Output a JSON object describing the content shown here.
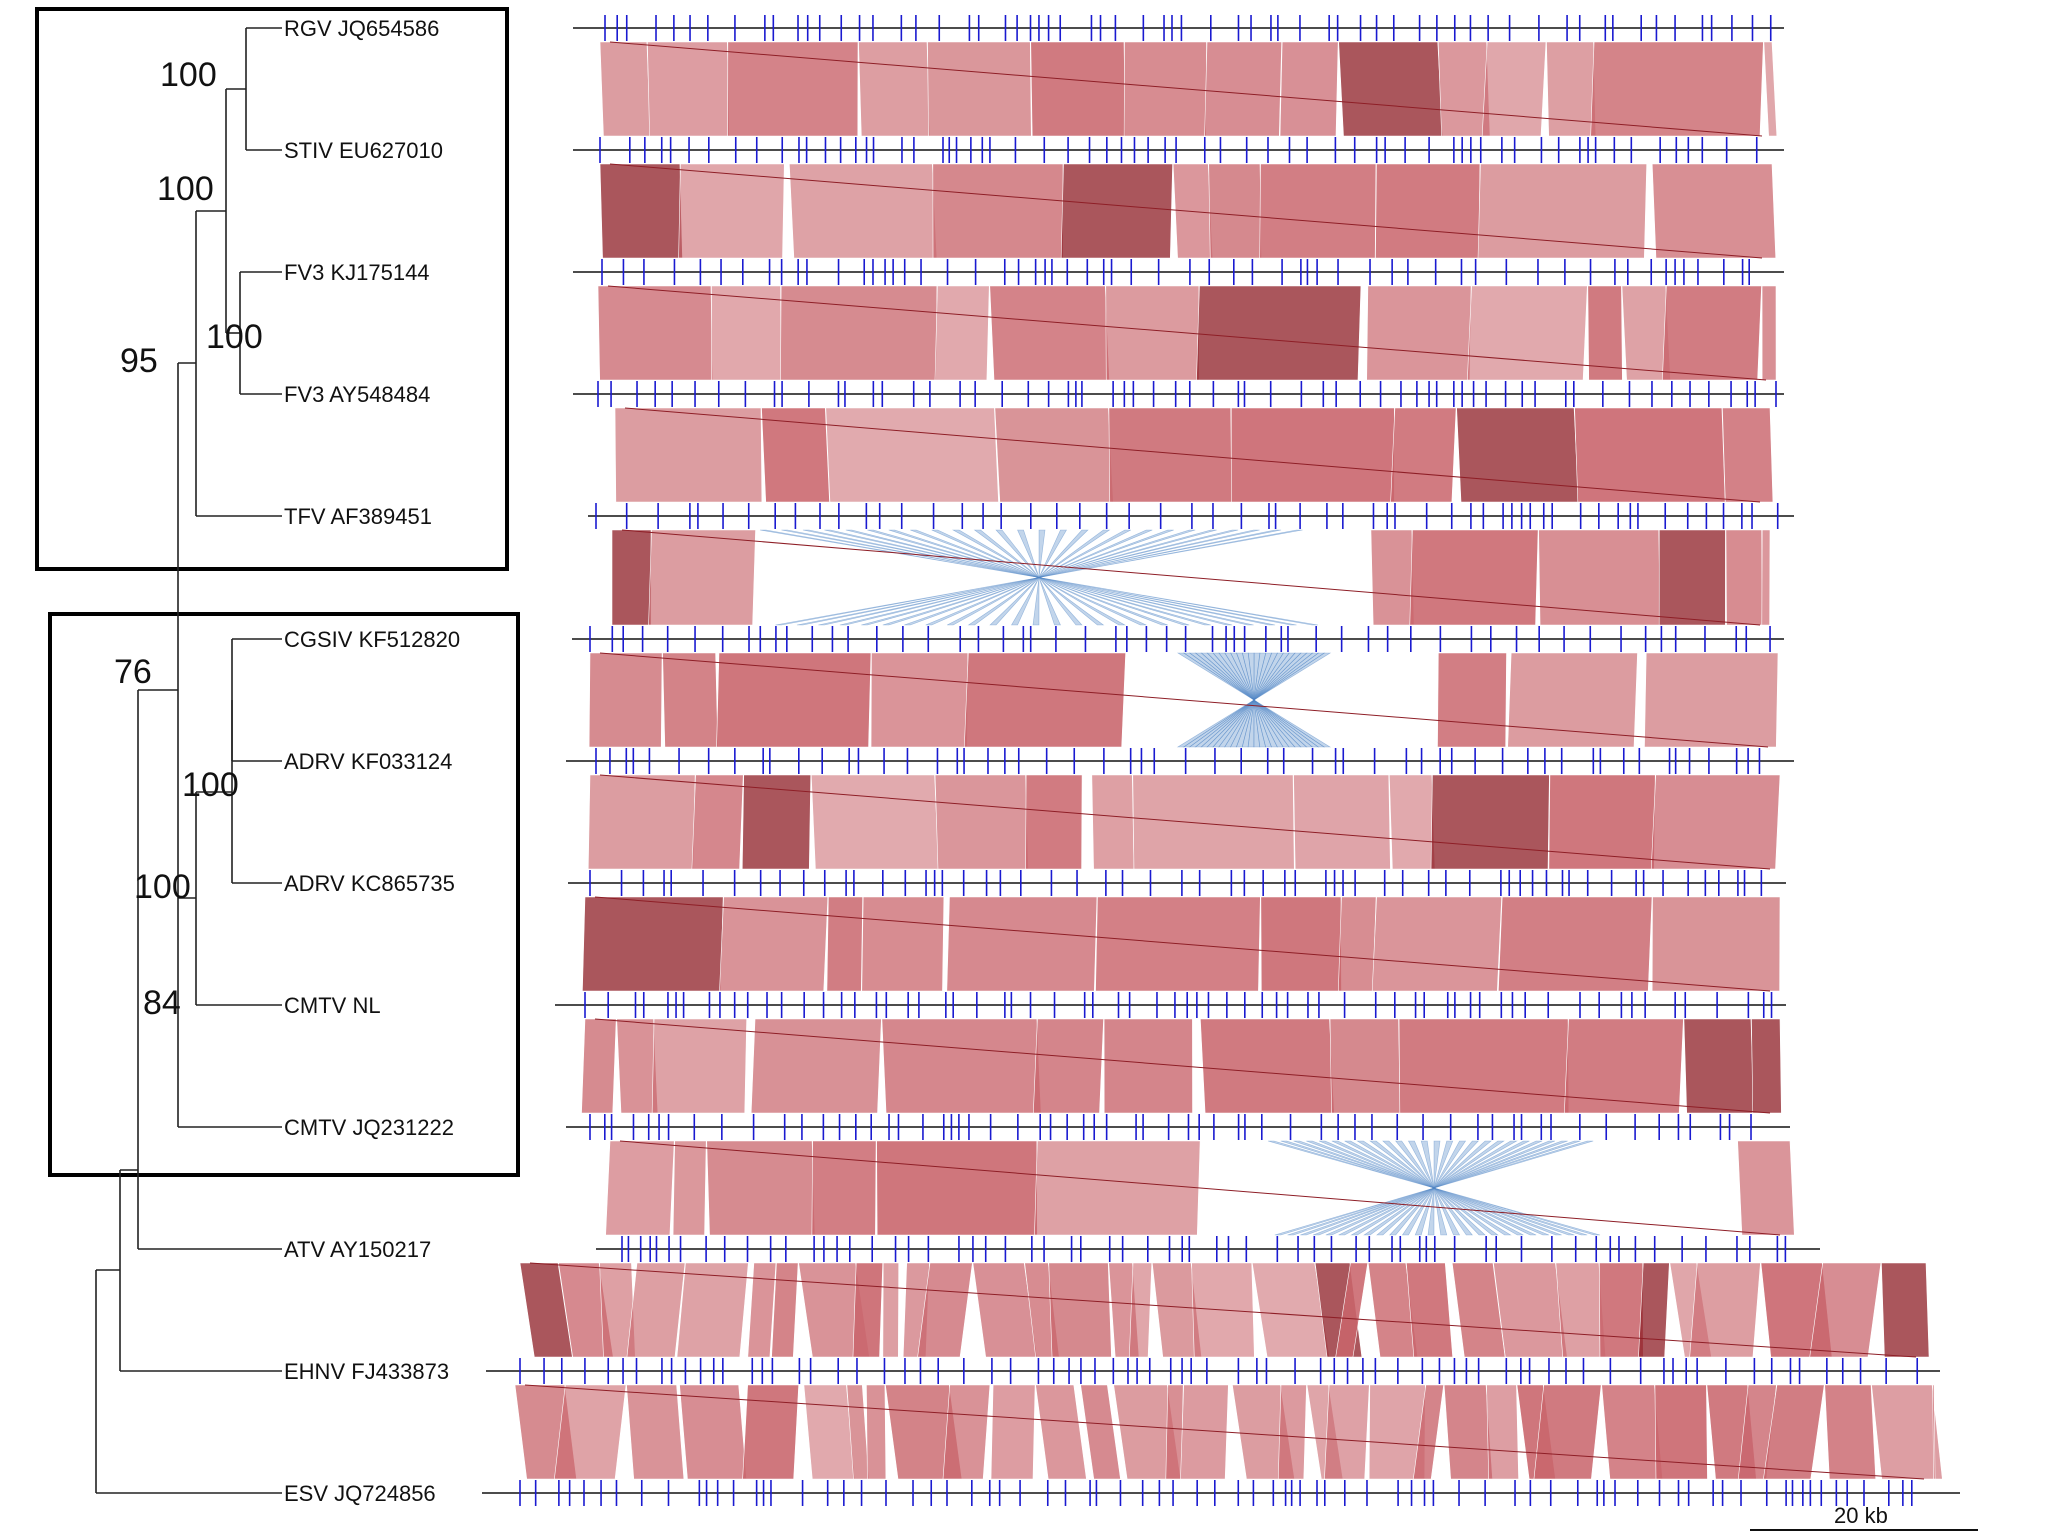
{
  "taxa": [
    "RGV JQ654586",
    "STIV EU627010",
    "FV3 KJ175144",
    "FV3 AY548484",
    "TFV AF389451",
    "CGSIV KF512820",
    "ADRV KF033124",
    "ADRV KC865735",
    "CMTV NL",
    "CMTV JQ231222",
    "ATV AY150217",
    "EHNV FJ433873",
    "ESV JQ724856"
  ],
  "bootstrap": {
    "rgv_stiv": "100",
    "stiv_fv3": "100",
    "fv3_pair": "100",
    "tfv_clade": "95",
    "cmtv_clade": "76",
    "cgsiv_adrv": "100",
    "adrv_cmtv": "100",
    "cmtv_pair": "84"
  },
  "scale_bar": "20 kb",
  "colors": {
    "collinear_match": "#c9656c",
    "strong_match": "#8e1e26",
    "inverted_match": "#4f86c6",
    "gene_tick": "#1a1ad0",
    "genome_line": "#111111",
    "tree": "#222222",
    "box": "#000000"
  }
}
